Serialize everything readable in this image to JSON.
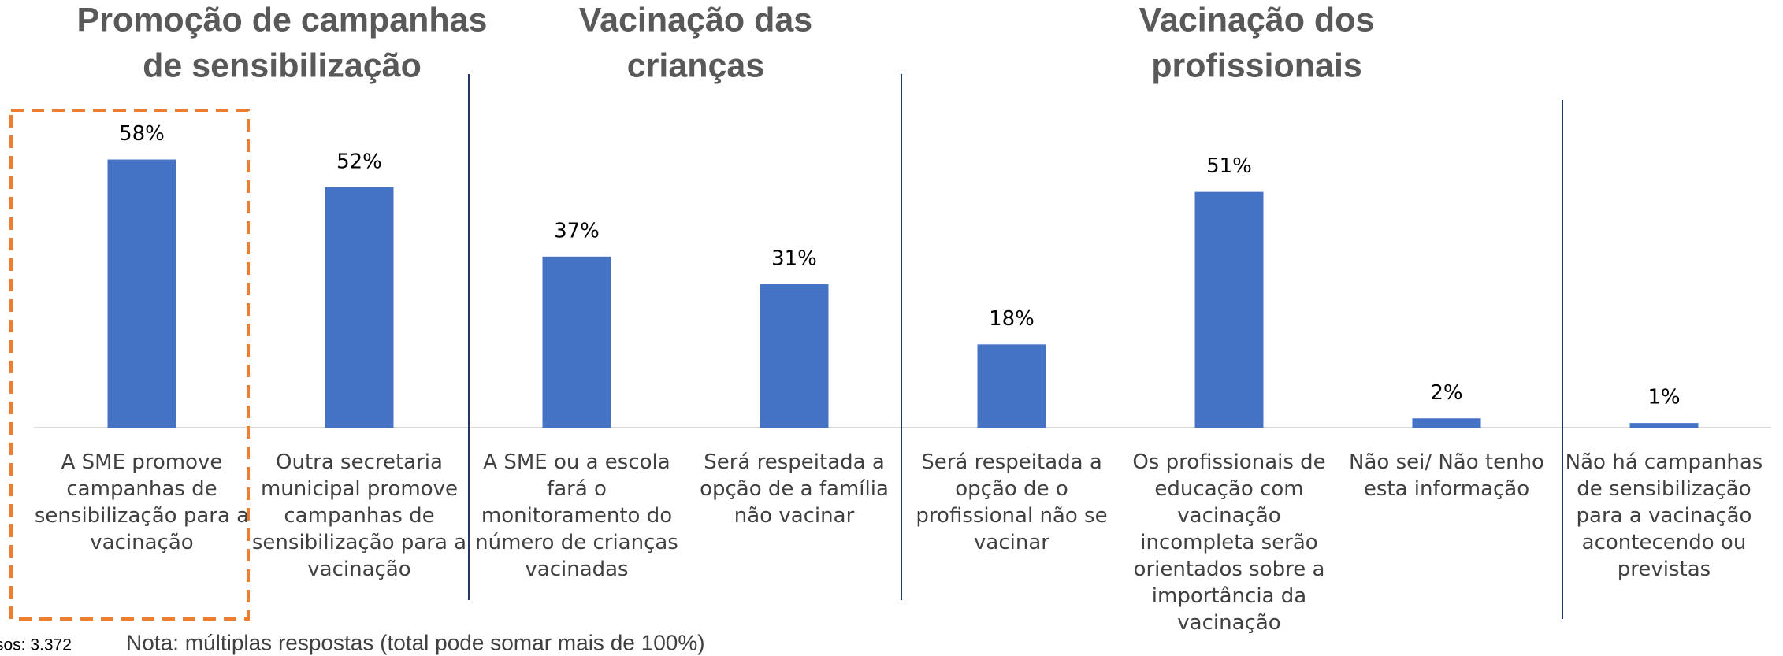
{
  "chart_data": {
    "type": "bar",
    "group_titles": [
      [
        "Promoção de campanhas",
        "de sensibilização"
      ],
      [
        "Vacinação das",
        "crianças"
      ],
      [
        "Vacinação dos",
        "profissionais"
      ]
    ],
    "categories": [
      "A SME promove campanhas de sensibilização para a vacinação",
      "Outra secretaria municipal promove campanhas de sensibilização para a vacinação",
      "A SME ou a escola fará o monitoramento do número de crianças vacinadas",
      "Será respeitada a opção de a família não vacinar",
      "Será respeitada a opção de o profissional não se vacinar",
      "Os profissionais de educação com vacinação incompleta serão orientados sobre a importância da vacinação",
      "Não sei/ Não tenho esta informação",
      "Não há campanhas de sensibilização para a vacinação acontecendo ou previstas"
    ],
    "values": [
      58,
      52,
      37,
      31,
      18,
      51,
      2,
      1
    ],
    "value_labels": [
      "58%",
      "52%",
      "37%",
      "31%",
      "18%",
      "51%",
      "2%",
      "1%"
    ],
    "color": "#4472c4",
    "footnote": [
      "sos: 3.372",
      "Nota: múltiplas respostas (total pode somar mais de 100%)"
    ]
  }
}
